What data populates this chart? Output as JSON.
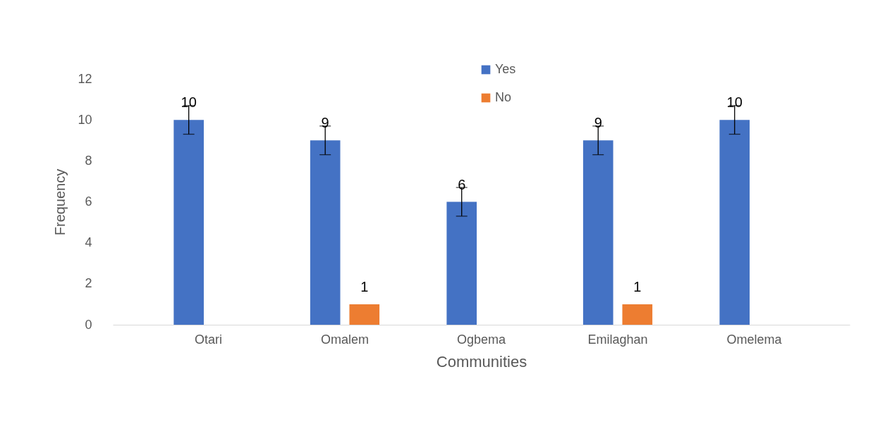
{
  "chart_data": {
    "type": "bar",
    "xlabel": "Communities",
    "ylabel": "Frequency",
    "categories": [
      "Otari",
      "Omalem",
      "Ogbema",
      "Emilaghan",
      "Omelema"
    ],
    "series": [
      {
        "name": "Yes",
        "color": "#4472c4",
        "values": [
          10,
          9,
          6,
          9,
          10
        ],
        "errors": [
          0.7,
          0.7,
          0.7,
          0.7,
          0.7
        ]
      },
      {
        "name": "No",
        "color": "#ed7d31",
        "values": [
          null,
          1,
          null,
          1,
          null
        ]
      }
    ],
    "ylim": [
      0,
      12
    ],
    "yticks": [
      0,
      2,
      4,
      6,
      8,
      10,
      12
    ],
    "grid": false,
    "legend": "top",
    "data_labels": true
  }
}
